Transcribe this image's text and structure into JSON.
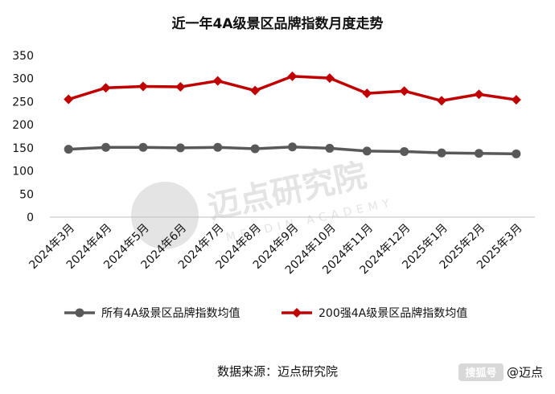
{
  "chart_data": {
    "type": "line",
    "title": "近一年4A级景区品牌指数月度走势",
    "categories": [
      "2024年3月",
      "2024年4月",
      "2024年5月",
      "2024年6月",
      "2024年7月",
      "2024年8月",
      "2024年9月",
      "2024年10月",
      "2024年11月",
      "2024年12月",
      "2025年1月",
      "2025年2月",
      "2025年3月"
    ],
    "series": [
      {
        "name": "所有4A级景区品牌指数均值",
        "color": "#595959",
        "marker": "circle",
        "values": [
          147,
          151,
          151,
          150,
          151,
          148,
          152,
          149,
          143,
          142,
          139,
          138,
          137
        ]
      },
      {
        "name": "200强4A级景区品牌指数均值",
        "color": "#c00000",
        "marker": "diamond",
        "values": [
          255,
          280,
          283,
          282,
          295,
          274,
          305,
          301,
          268,
          273,
          252,
          266,
          254
        ]
      }
    ],
    "ylim": [
      0,
      350
    ],
    "yticks": [
      0,
      50,
      100,
      150,
      200,
      250,
      300,
      350
    ],
    "grid": false,
    "legend": "bottom",
    "source": "数据来源：迈点研究院"
  },
  "watermark": {
    "text": "迈点研究院",
    "subtext": "MEADIN ACADEMY"
  },
  "corner_badge": {
    "label": "搜狐号",
    "handle": "@迈点"
  }
}
